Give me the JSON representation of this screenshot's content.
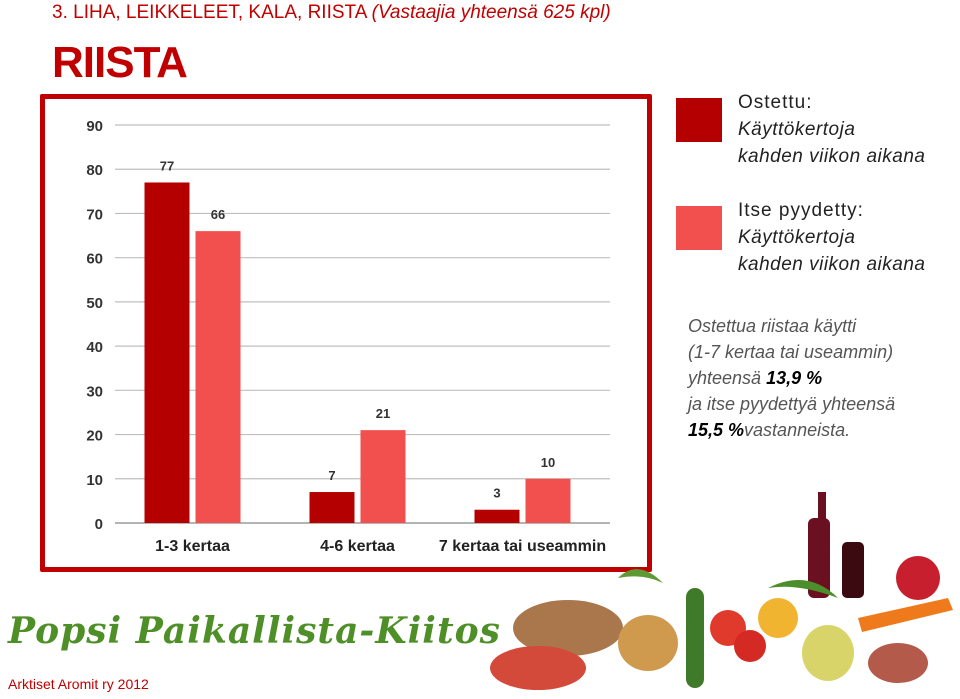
{
  "header": {
    "prefix": "3. LIHA, LEIKKELEET, KALA, RIISTA",
    "note": "(Vastaajia yhteensä 625 kpl)"
  },
  "section_title": "RIISTA",
  "legend": [
    {
      "title": "Ostettu:",
      "line1": "Käyttökertoja",
      "line2": "kahden viikon aikana",
      "color": "#b50000"
    },
    {
      "title": "Itse pyydetty:",
      "line1": "Käyttökertoja",
      "line2": "kahden viikon aikana",
      "color": "#f24f4f"
    }
  ],
  "summary": {
    "line1": "Ostettua riistaa käytti",
    "line2": "(1-7 kertaa tai useammin)",
    "line3_prefix": "yhteensä",
    "value1": "13,9 %",
    "line4": "ja itse pyydettyä yhteensä",
    "value2": "15,5 %",
    "line5_suffix": "vastanneista."
  },
  "logo_text": "Popsi Paikallista-Kiitos",
  "footer": "Arktiset Aromit ry 2012",
  "chart_data": {
    "type": "bar",
    "categories": [
      "1-3 kertaa",
      "4-6 kertaa",
      "7 kertaa tai useammin"
    ],
    "series": [
      {
        "values": [
          77,
          7,
          3
        ],
        "color": "#b50000"
      },
      {
        "values": [
          66,
          21,
          10
        ],
        "color": "#f24f4f"
      }
    ],
    "ylim": [
      0,
      90
    ],
    "yticks": [
      0,
      10,
      20,
      30,
      40,
      50,
      60,
      70,
      80,
      90
    ],
    "grid": true
  }
}
